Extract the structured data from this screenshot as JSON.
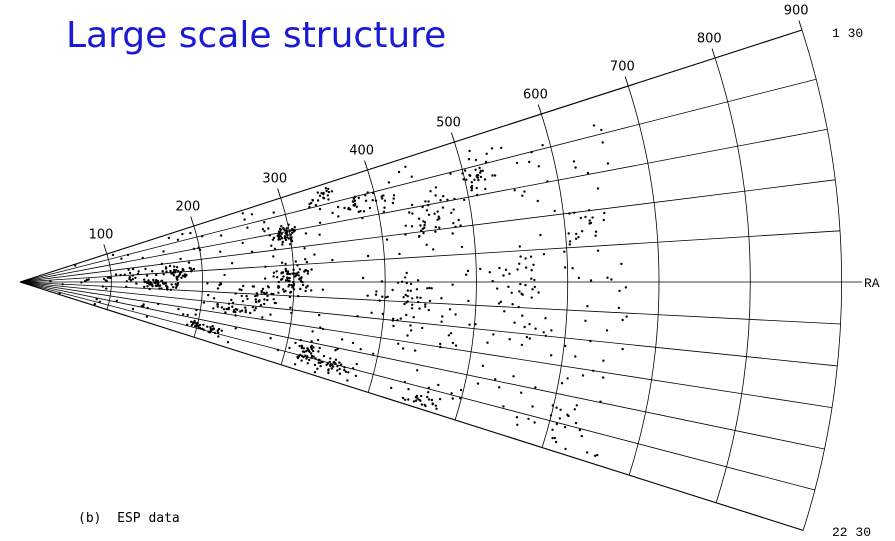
{
  "slide": {
    "title": "Large scale structure",
    "title_color": "#1a1ad6",
    "caption": "(b)  ESP data"
  },
  "wedge_plot": {
    "distance_labels": [
      "100",
      "200",
      "300",
      "400",
      "500",
      "600",
      "700",
      "800",
      "900"
    ],
    "distances": [
      100,
      200,
      300,
      400,
      500,
      600,
      700,
      800,
      900
    ],
    "ra_axis_label": "RA",
    "ra_top_label": "1 30",
    "ra_bottom_label": "22 30",
    "outer_distance": 900,
    "ra_lines_above": 4,
    "ra_lines_below": 5,
    "line_color": "#000000",
    "point_color": "#000000",
    "point_count_note": ""
  }
}
